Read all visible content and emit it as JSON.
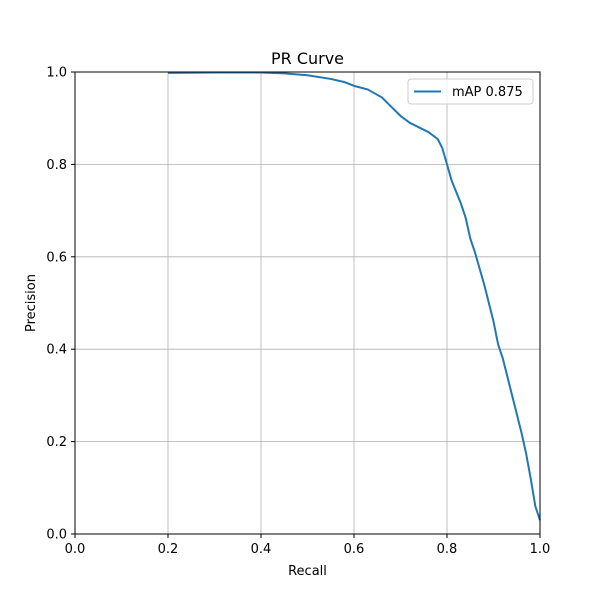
{
  "chart_data": {
    "type": "line",
    "title": "PR Curve",
    "xlabel": "Recall",
    "ylabel": "Precision",
    "xlim": [
      0.0,
      1.0
    ],
    "ylim": [
      0.0,
      1.0
    ],
    "xticks": [
      "0.0",
      "0.2",
      "0.4",
      "0.6",
      "0.8",
      "1.0"
    ],
    "yticks": [
      "0.0",
      "0.2",
      "0.4",
      "0.6",
      "0.8",
      "1.0"
    ],
    "grid": true,
    "legend_position": "top-right",
    "colors": {
      "series": "#1f77b4",
      "grid": "#b0b0b0"
    },
    "series": [
      {
        "name": "mAP 0.875",
        "x": [
          0.2,
          0.3,
          0.4,
          0.45,
          0.5,
          0.55,
          0.58,
          0.6,
          0.63,
          0.66,
          0.68,
          0.7,
          0.72,
          0.74,
          0.76,
          0.78,
          0.79,
          0.8,
          0.81,
          0.82,
          0.83,
          0.84,
          0.85,
          0.86,
          0.87,
          0.88,
          0.89,
          0.9,
          0.91,
          0.92,
          0.93,
          0.94,
          0.95,
          0.96,
          0.97,
          0.98,
          0.99,
          1.0
        ],
        "y": [
          0.998,
          0.999,
          0.999,
          0.997,
          0.993,
          0.985,
          0.978,
          0.97,
          0.962,
          0.945,
          0.925,
          0.905,
          0.89,
          0.88,
          0.87,
          0.855,
          0.835,
          0.8,
          0.765,
          0.74,
          0.715,
          0.685,
          0.64,
          0.61,
          0.575,
          0.54,
          0.5,
          0.46,
          0.41,
          0.38,
          0.34,
          0.3,
          0.26,
          0.22,
          0.175,
          0.12,
          0.06,
          0.03
        ]
      }
    ]
  }
}
